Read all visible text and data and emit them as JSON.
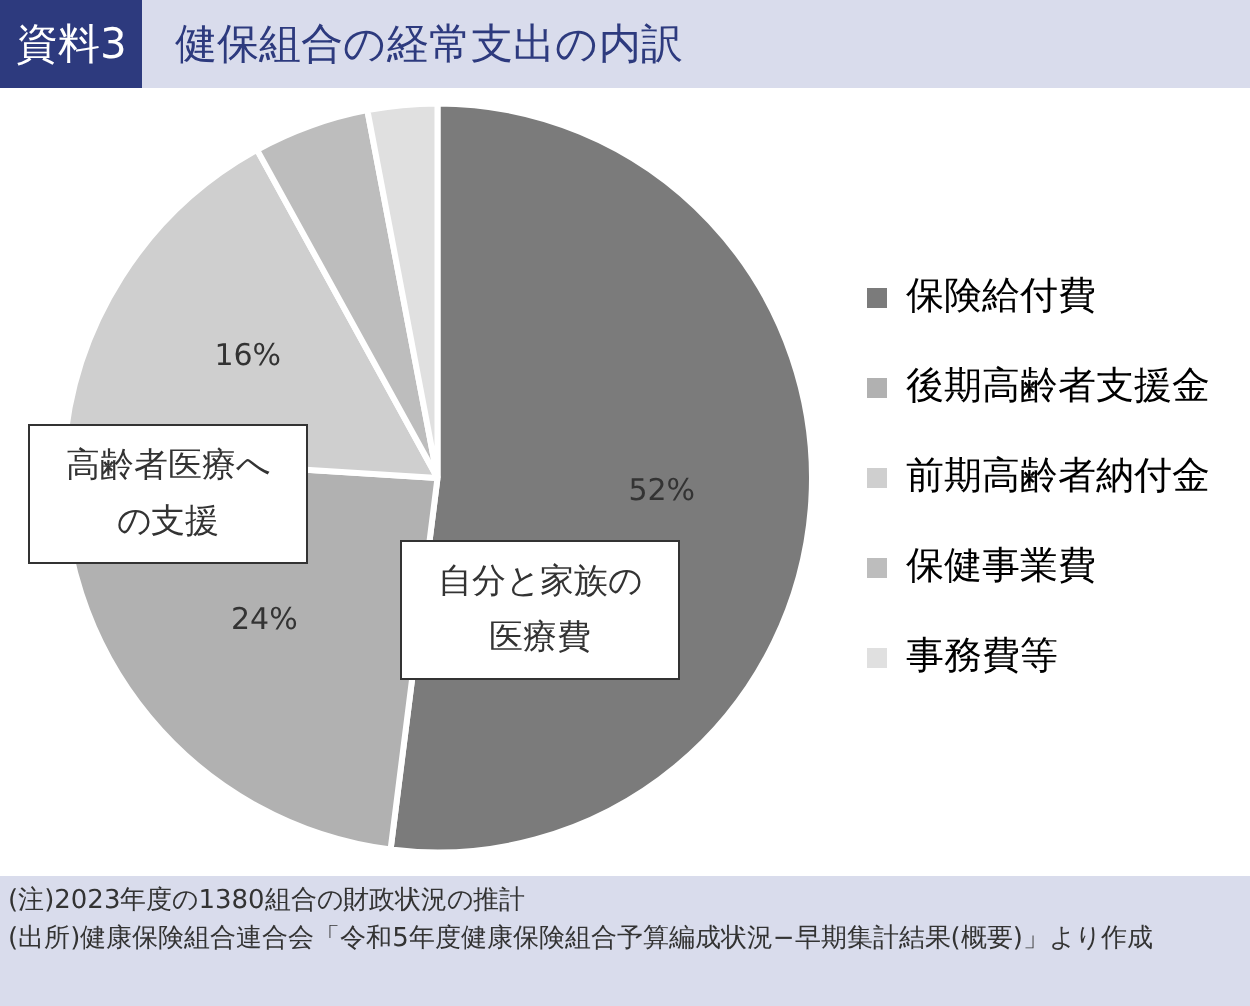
{
  "chart_data": {
    "type": "pie",
    "title": "健保組合の経常支出の内訳",
    "subtitle": "資料3",
    "categories": [
      "保険給付費",
      "後期高齢者支援金",
      "前期高齢者納付金",
      "保健事業費",
      "事務費等"
    ],
    "values": [
      52,
      24,
      16,
      5,
      3
    ],
    "colors": [
      "#7b7b7b",
      "#b1b1b1",
      "#cfcfcf",
      "#bdbdbd",
      "#e0e0e0"
    ],
    "value_labels": [
      "52%",
      "24%",
      "16%",
      null,
      null
    ],
    "legend": "right",
    "annotations": [
      "自分と家族の医療費",
      "高齢者医療への支援",
      "(注)2023年度の1380組合の財政状況の推計",
      "(出所)健康保険組合連合会「令和5年度健康保険組合予算編成状況−早期集計結果(概要)」より作成"
    ]
  }
}
